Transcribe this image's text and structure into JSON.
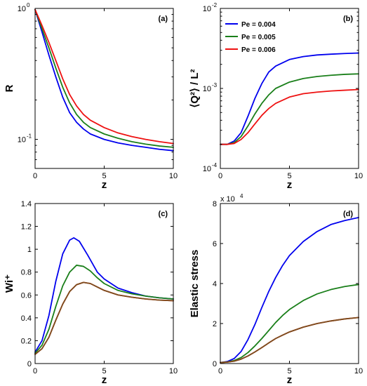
{
  "colors": {
    "blue": "#0000ee",
    "green": "#1a7f1a",
    "red": "#ee1111"
  },
  "chart_data": [
    {
      "id": "a",
      "type": "line",
      "panel_label": "(a)",
      "xlabel": "z",
      "ylabel": "R",
      "xlim": [
        0,
        10
      ],
      "ylim": [
        0.06,
        1.0
      ],
      "yscale": "log",
      "xticks": [
        {
          "v": 0,
          "label": "0"
        },
        {
          "v": 5,
          "label": "5"
        },
        {
          "v": 10,
          "label": "10"
        }
      ],
      "yticks": [
        {
          "v": 0.1,
          "base": "10",
          "exp": "-1"
        },
        {
          "v": 1.0,
          "base": "10",
          "exp": "0"
        }
      ],
      "legend": null,
      "series": [
        {
          "color": "#0000ee",
          "x": [
            0,
            0.5,
            1,
            1.5,
            2,
            2.5,
            3,
            3.5,
            4,
            5,
            6,
            7,
            8,
            9,
            10
          ],
          "y": [
            0.98,
            0.66,
            0.44,
            0.3,
            0.21,
            0.16,
            0.135,
            0.12,
            0.11,
            0.1,
            0.094,
            0.09,
            0.087,
            0.084,
            0.082
          ]
        },
        {
          "color": "#1a7f1a",
          "x": [
            0,
            0.5,
            1,
            1.5,
            2,
            2.5,
            3,
            3.5,
            4,
            5,
            6,
            7,
            8,
            9,
            10
          ],
          "y": [
            0.98,
            0.7,
            0.5,
            0.35,
            0.25,
            0.19,
            0.155,
            0.135,
            0.123,
            0.11,
            0.102,
            0.096,
            0.092,
            0.089,
            0.087
          ]
        },
        {
          "color": "#ee1111",
          "x": [
            0,
            0.5,
            1,
            1.5,
            2,
            2.5,
            3,
            3.5,
            4,
            5,
            6,
            7,
            8,
            9,
            10
          ],
          "y": [
            0.98,
            0.74,
            0.55,
            0.4,
            0.29,
            0.22,
            0.18,
            0.155,
            0.14,
            0.123,
            0.112,
            0.105,
            0.1,
            0.096,
            0.093
          ]
        }
      ]
    },
    {
      "id": "b",
      "type": "line",
      "panel_label": "(b)",
      "xlabel": "z",
      "ylabel": "⟨Q²⟩ / L²",
      "xlim": [
        0,
        10
      ],
      "ylim": [
        0.0001,
        0.01
      ],
      "yscale": "log",
      "xticks": [
        {
          "v": 0,
          "label": "0"
        },
        {
          "v": 5,
          "label": "5"
        },
        {
          "v": 10,
          "label": "10"
        }
      ],
      "yticks": [
        {
          "v": 0.0001,
          "base": "10",
          "exp": "-4"
        },
        {
          "v": 0.001,
          "base": "10",
          "exp": "-3"
        },
        {
          "v": 0.01,
          "base": "10",
          "exp": "-2"
        }
      ],
      "legend": "top-left",
      "series": [
        {
          "name": "Pe = 0.004",
          "color": "#0000ee",
          "x": [
            0,
            0.5,
            1,
            1.5,
            2,
            2.5,
            3,
            3.5,
            4,
            5,
            6,
            7,
            8,
            9,
            10
          ],
          "y": [
            0.0002,
            0.0002,
            0.00022,
            0.00028,
            0.00045,
            0.00075,
            0.00115,
            0.0016,
            0.0019,
            0.0023,
            0.0025,
            0.00262,
            0.00268,
            0.00273,
            0.00277
          ]
        },
        {
          "name": "Pe = 0.005",
          "color": "#1a7f1a",
          "x": [
            0,
            0.5,
            1,
            1.5,
            2,
            2.5,
            3,
            3.5,
            4,
            5,
            6,
            7,
            8,
            9,
            10
          ],
          "y": [
            0.0002,
            0.0002,
            0.00021,
            0.00025,
            0.00034,
            0.00048,
            0.00065,
            0.00083,
            0.001,
            0.0012,
            0.00133,
            0.00141,
            0.00146,
            0.0015,
            0.00152
          ]
        },
        {
          "name": "Pe = 0.006",
          "color": "#ee1111",
          "x": [
            0,
            0.5,
            1,
            1.5,
            2,
            2.5,
            3,
            3.5,
            4,
            5,
            6,
            7,
            8,
            9,
            10
          ],
          "y": [
            0.0002,
            0.0002,
            0.000205,
            0.00023,
            0.00028,
            0.00036,
            0.00046,
            0.00056,
            0.00065,
            0.00078,
            0.00086,
            0.0009,
            0.00093,
            0.00095,
            0.00097
          ]
        }
      ]
    },
    {
      "id": "c",
      "type": "line",
      "panel_label": "(c)",
      "xlabel": "z",
      "ylabel": "Wi⁺",
      "xlim": [
        0,
        10
      ],
      "ylim": [
        0,
        1.4
      ],
      "yscale": "linear",
      "xticks": [
        {
          "v": 0,
          "label": "0"
        },
        {
          "v": 5,
          "label": "5"
        },
        {
          "v": 10,
          "label": "10"
        }
      ],
      "yticks": [
        {
          "v": 0,
          "label": "0"
        },
        {
          "v": 0.2,
          "label": "0.2"
        },
        {
          "v": 0.4,
          "label": "0.4"
        },
        {
          "v": 0.6,
          "label": "0.6"
        },
        {
          "v": 0.8,
          "label": "0.8"
        },
        {
          "v": 1.0,
          "label": "1"
        },
        {
          "v": 1.2,
          "label": "1.2"
        },
        {
          "v": 1.4,
          "label": "1.4"
        }
      ],
      "legend": null,
      "series": [
        {
          "color": "#0000ee",
          "x": [
            0,
            0.5,
            1,
            1.5,
            2,
            2.5,
            2.8,
            3.2,
            3.8,
            4.5,
            5,
            6,
            7,
            8,
            9,
            10
          ],
          "y": [
            0.1,
            0.2,
            0.42,
            0.72,
            0.96,
            1.08,
            1.1,
            1.07,
            0.95,
            0.8,
            0.74,
            0.66,
            0.62,
            0.59,
            0.575,
            0.565
          ]
        },
        {
          "color": "#1a7f1a",
          "x": [
            0,
            0.5,
            1,
            1.5,
            2,
            2.5,
            3,
            3.5,
            4,
            4.5,
            5,
            6,
            7,
            8,
            9,
            10
          ],
          "y": [
            0.09,
            0.16,
            0.3,
            0.5,
            0.68,
            0.8,
            0.86,
            0.85,
            0.81,
            0.75,
            0.7,
            0.64,
            0.61,
            0.59,
            0.575,
            0.565
          ]
        },
        {
          "color": "#ee1111",
          "x": [
            0,
            0.5,
            1,
            1.5,
            2,
            2.5,
            3,
            3.5,
            4,
            4.5,
            5,
            6,
            7,
            8,
            9,
            10
          ],
          "y": [
            0.08,
            0.13,
            0.23,
            0.38,
            0.52,
            0.63,
            0.69,
            0.71,
            0.7,
            0.67,
            0.64,
            0.6,
            0.58,
            0.565,
            0.555,
            0.55
          ]
        },
        {
          "color": "#7a4e1e",
          "x": [
            0,
            0.5,
            1,
            1.5,
            2,
            2.5,
            3,
            3.5,
            4,
            4.5,
            5,
            6,
            7,
            8,
            9,
            10
          ],
          "y": [
            0.08,
            0.13,
            0.23,
            0.38,
            0.52,
            0.63,
            0.69,
            0.71,
            0.7,
            0.67,
            0.64,
            0.6,
            0.58,
            0.565,
            0.555,
            0.55
          ]
        }
      ]
    },
    {
      "id": "d",
      "type": "line",
      "panel_label": "(d)",
      "xlabel": "z",
      "ylabel": "Elastic stress",
      "xlim": [
        0,
        10
      ],
      "ylim": [
        0,
        80000
      ],
      "yscale": "linear",
      "multiplier": {
        "base": "x 10",
        "exp": "4"
      },
      "xticks": [
        {
          "v": 0,
          "label": "0"
        },
        {
          "v": 5,
          "label": "5"
        },
        {
          "v": 10,
          "label": "10"
        }
      ],
      "yticks": [
        {
          "v": 0,
          "label": "0"
        },
        {
          "v": 20000,
          "label": "2"
        },
        {
          "v": 40000,
          "label": "4"
        },
        {
          "v": 60000,
          "label": "6"
        },
        {
          "v": 80000,
          "label": "8"
        }
      ],
      "legend": null,
      "series": [
        {
          "color": "#0000ee",
          "x": [
            0,
            0.5,
            1,
            1.5,
            2,
            2.5,
            3,
            3.5,
            4,
            4.5,
            5,
            6,
            7,
            8,
            9,
            10
          ],
          "y": [
            500,
            1000,
            2500,
            6000,
            12000,
            19500,
            28000,
            36000,
            43000,
            49000,
            54000,
            61000,
            66000,
            69500,
            71500,
            73000
          ]
        },
        {
          "color": "#1a7f1a",
          "x": [
            0,
            0.5,
            1,
            1.5,
            2,
            2.5,
            3,
            3.5,
            4,
            4.5,
            5,
            6,
            7,
            8,
            9,
            10
          ],
          "y": [
            500,
            800,
            1500,
            3000,
            5500,
            8800,
            12500,
            16500,
            20500,
            24000,
            27000,
            31500,
            34800,
            37000,
            38500,
            39500
          ]
        },
        {
          "color": "#ee1111",
          "x": [
            0,
            0.5,
            1,
            1.5,
            2,
            2.5,
            3,
            3.5,
            4,
            4.5,
            5,
            6,
            7,
            8,
            9,
            10
          ],
          "y": [
            500,
            700,
            1200,
            2200,
            3800,
            5800,
            8000,
            10300,
            12500,
            14200,
            15800,
            18200,
            20000,
            21300,
            22300,
            23000
          ]
        },
        {
          "color": "#7a4e1e",
          "x": [
            0,
            0.5,
            1,
            1.5,
            2,
            2.5,
            3,
            3.5,
            4,
            4.5,
            5,
            6,
            7,
            8,
            9,
            10
          ],
          "y": [
            500,
            700,
            1200,
            2200,
            3800,
            5800,
            8000,
            10300,
            12500,
            14200,
            15800,
            18200,
            20000,
            21300,
            22300,
            23000
          ]
        }
      ]
    }
  ]
}
